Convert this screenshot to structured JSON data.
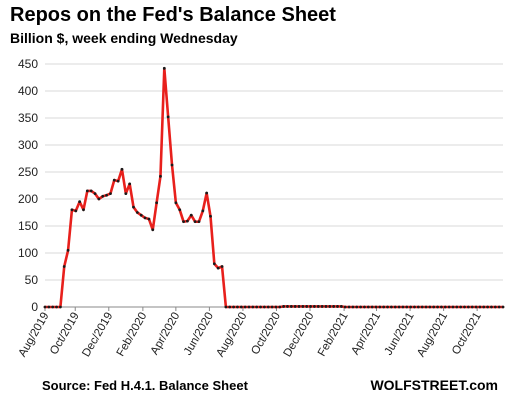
{
  "header": {
    "title": "Repos on the Fed's Balance Sheet",
    "subtitle": "Billion $, week ending Wednesday"
  },
  "footer": {
    "source": "Source: Fed H.4.1. Balance Sheet",
    "brand": "WOLFSTREET.com"
  },
  "colors": {
    "line": "#e8201c",
    "marker": "#1a1a1a",
    "grid": "#d9d9d9"
  },
  "chart_data": {
    "type": "line",
    "title": "Repos on the Fed's Balance Sheet",
    "subtitle": "Billion $, week ending Wednesday",
    "xlabel": "",
    "ylabel": "",
    "ylim": [
      0,
      450
    ],
    "yticks": [
      0,
      50,
      100,
      150,
      200,
      250,
      300,
      350,
      400,
      450
    ],
    "grid": "horizontal",
    "legend": "none",
    "x_tick_labels": [
      "Aug/2019",
      "Oct/2019",
      "Dec/2019",
      "Feb/2020",
      "Apr/2020",
      "Jun/2020",
      "Aug/2020",
      "Oct/2020",
      "Dec/2020",
      "Feb/2021",
      "Apr/2021",
      "Jun/2021",
      "Aug/2021",
      "Oct/2021"
    ],
    "x_start": "2019-08-07",
    "series": [
      {
        "name": "Repos",
        "weekly_values": [
          0,
          0,
          0,
          0,
          0,
          75,
          105,
          180,
          178,
          195,
          180,
          215,
          215,
          210,
          200,
          205,
          207,
          210,
          235,
          233,
          255,
          210,
          228,
          185,
          175,
          170,
          165,
          163,
          143,
          193,
          242,
          442,
          352,
          263,
          193,
          180,
          158,
          159,
          170,
          158,
          158,
          178,
          211,
          168,
          80,
          72,
          75,
          0,
          0,
          0,
          0,
          0,
          0,
          0,
          0,
          0,
          0,
          0,
          0,
          0,
          0,
          0,
          1,
          1,
          1,
          1,
          1,
          1,
          1,
          1,
          1,
          1,
          1,
          1,
          1,
          1,
          1,
          1,
          0,
          0,
          0,
          0,
          0,
          0,
          0,
          0,
          0,
          0,
          0,
          0,
          0,
          0,
          0,
          0,
          0,
          0,
          0,
          0,
          0,
          0,
          0,
          0,
          0,
          0,
          0,
          0,
          0,
          0,
          0,
          0,
          0,
          0,
          0,
          0,
          0,
          0,
          0,
          0,
          0,
          0
        ]
      }
    ]
  }
}
